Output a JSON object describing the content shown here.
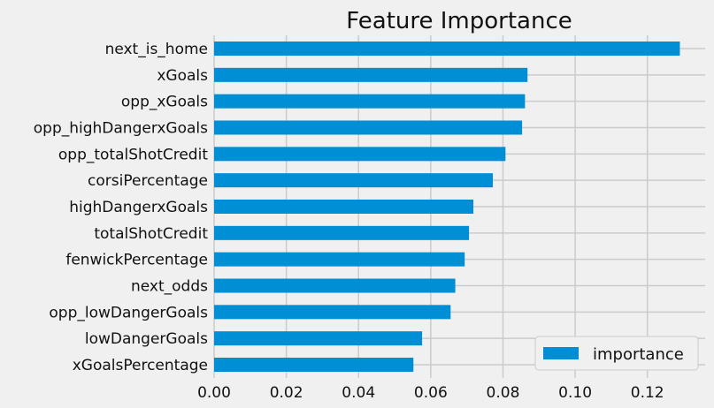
{
  "chart_data": {
    "type": "bar",
    "orientation": "horizontal",
    "title": "Feature Importance",
    "xlabel": "",
    "ylabel": "",
    "xlim": [
      0,
      0.136
    ],
    "xticks": [
      "0.00",
      "0.02",
      "0.04",
      "0.06",
      "0.08",
      "0.10",
      "0.12"
    ],
    "categories": [
      "next_is_home",
      "xGoals",
      "opp_xGoals",
      "opp_highDangerxGoals",
      "opp_totalShotCredit",
      "corsiPercentage",
      "highDangerxGoals",
      "totalShotCredit",
      "fenwickPercentage",
      "next_odds",
      "opp_lowDangerGoals",
      "lowDangerGoals",
      "xGoalsPercentage"
    ],
    "series": [
      {
        "name": "importance",
        "color": "#008fd5",
        "values": [
          0.129,
          0.0868,
          0.0861,
          0.0853,
          0.0807,
          0.0772,
          0.0718,
          0.0706,
          0.0694,
          0.0668,
          0.0655,
          0.0576,
          0.0552
        ]
      }
    ],
    "grid": true,
    "legend": {
      "position": "lower-right",
      "entries": [
        "importance"
      ]
    }
  }
}
